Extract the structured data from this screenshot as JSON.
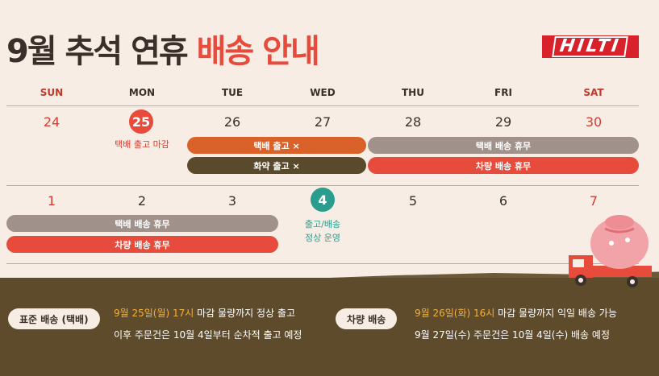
{
  "title": {
    "main": "9월 추석 연휴",
    "accent": "배송 안내"
  },
  "logo": "HILTI",
  "days_of_week": [
    "SUN",
    "MON",
    "TUE",
    "WED",
    "THU",
    "FRI",
    "SAT"
  ],
  "week1": {
    "dates": [
      "24",
      "25",
      "26",
      "27",
      "28",
      "29",
      "30"
    ],
    "mon_note": "택배 출고 마감",
    "bars": {
      "parcel_out": "택배 출고 ×",
      "chem_out": "화약 출고 ×",
      "parcel_holiday": "택배 배송 휴무",
      "vehicle_holiday": "차량 배송 휴무"
    }
  },
  "week2": {
    "dates": [
      "1",
      "2",
      "3",
      "4",
      "5",
      "6",
      "7"
    ],
    "wed_note_line1": "출고/배송",
    "wed_note_line2": "정상 운영",
    "bars": {
      "parcel_holiday": "택배 배송 휴무",
      "vehicle_holiday": "차량 배송 휴무"
    }
  },
  "bottom": {
    "standard": {
      "pill": "표준 배송 (택배)",
      "line1_hl": "9월 25일(월) 17시",
      "line1_rest": " 마감 물량까지 정상 출고",
      "line2": "이후 주문건은 10월 4일부터 순차적 출고 예정"
    },
    "vehicle": {
      "pill": "차량 배송",
      "line1_hl": "9월 26일(화) 16시",
      "line1_rest": " 마감 물량까지 익일 배송 가능",
      "line2": "9월 27일(수) 주문건은 10월 4일(수) 배송 예정"
    }
  },
  "colors": {
    "accent_red": "#e64b3c",
    "orange": "#d9622b",
    "dark_olive": "#5a4a2c",
    "gray_brown": "#a0928a",
    "teal": "#2a9d8f",
    "ground": "#5d4b2b",
    "highlight": "#f4b03c"
  }
}
